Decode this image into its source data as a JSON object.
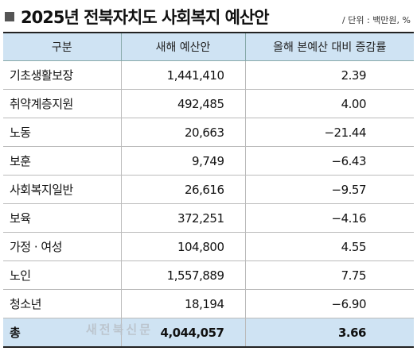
{
  "title": "2025년 전북자치도 사회복지 예산안",
  "unit": "/ 단위 : 백만원, %",
  "columns": [
    "구분",
    "새해 예산안",
    "올해 본예산 대비 증감률"
  ],
  "rows": [
    {
      "category": "기초생활보장",
      "budget": "1,441,410",
      "change": "2.39"
    },
    {
      "category": "취약계층지원",
      "budget": "492,485",
      "change": "4.00"
    },
    {
      "category": "노동",
      "budget": "20,663",
      "change": "−21.44"
    },
    {
      "category": "보훈",
      "budget": "9,749",
      "change": "−6.43"
    },
    {
      "category": "사회복지일반",
      "budget": "26,616",
      "change": "−9.57"
    },
    {
      "category": "보육",
      "budget": "372,251",
      "change": "−4.16"
    },
    {
      "category": "가정 · 여성",
      "budget": "104,800",
      "change": "4.55"
    },
    {
      "category": "노인",
      "budget": "1,557,889",
      "change": "7.75"
    },
    {
      "category": "청소년",
      "budget": "18,194",
      "change": "−6.90"
    }
  ],
  "total": {
    "category": "총",
    "budget": "4,044,057",
    "change": "3.66"
  },
  "watermark": "새전북신문",
  "colors": {
    "header_bg": "#cfe3f3",
    "total_bg": "#cfe3f3"
  }
}
